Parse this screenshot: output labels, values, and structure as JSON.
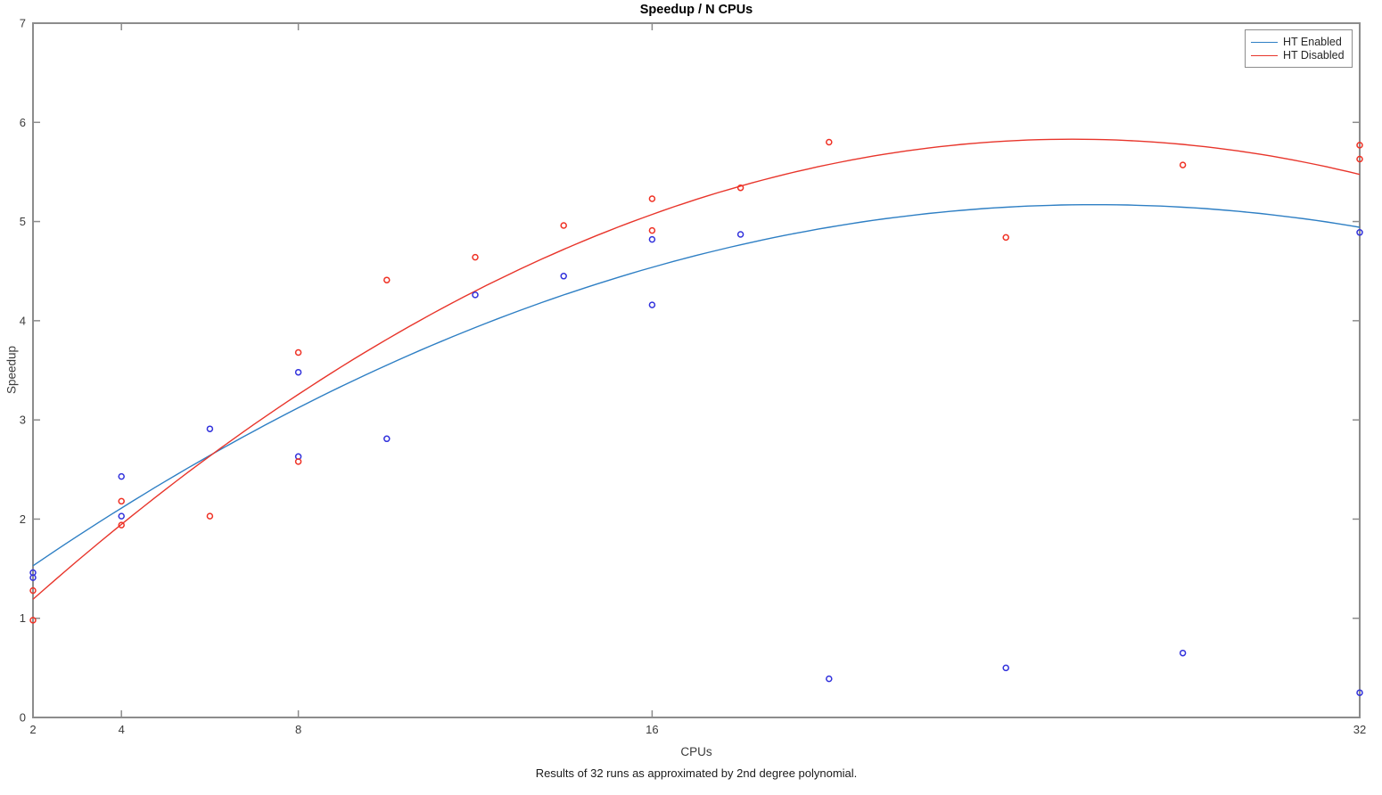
{
  "figure": {
    "title": "Speedup / N CPUs",
    "caption": "Results of 32 runs as approximated by 2nd degree polynomial."
  },
  "chart_data": {
    "type": "scatter",
    "title": "Speedup / N CPUs",
    "xlabel": "CPUs",
    "ylabel": "Speedup",
    "xlim": [
      2,
      32
    ],
    "ylim": [
      0,
      7
    ],
    "x_scale": "linear",
    "x_ticks": [
      2,
      4,
      8,
      16,
      32
    ],
    "y_ticks": [
      0,
      1,
      2,
      3,
      4,
      5,
      6,
      7
    ],
    "grid": false,
    "legend_position": "top-right",
    "axis_color": "#8c8c8c",
    "tick_label_color": "#3b3b3b",
    "series": [
      {
        "name": "HT Enabled",
        "marker_color": "#3232dc",
        "line_color": "#2e7fc4",
        "points": [
          [
            2,
            1.46
          ],
          [
            2,
            1.41
          ],
          [
            4,
            2.43
          ],
          [
            4,
            2.03
          ],
          [
            6,
            2.91
          ],
          [
            8,
            3.48
          ],
          [
            8,
            2.63
          ],
          [
            10,
            2.81
          ],
          [
            12,
            4.26
          ],
          [
            14,
            4.45
          ],
          [
            16,
            4.82
          ],
          [
            16,
            4.16
          ],
          [
            18,
            4.87
          ],
          [
            20,
            0.39
          ],
          [
            24,
            0.5
          ],
          [
            28,
            0.65
          ],
          [
            32,
            4.89
          ],
          [
            32,
            0.25
          ]
        ],
        "fit_2nd_degree_poly": {
          "a": -0.00632,
          "h": 26.0,
          "k": 5.17
        }
      },
      {
        "name": "HT Disabled",
        "marker_color": "#ef3124",
        "line_color": "#e8352b",
        "points": [
          [
            2,
            1.28
          ],
          [
            2,
            0.98
          ],
          [
            4,
            2.18
          ],
          [
            4,
            1.94
          ],
          [
            6,
            2.03
          ],
          [
            8,
            3.68
          ],
          [
            8,
            2.58
          ],
          [
            10,
            4.41
          ],
          [
            12,
            4.64
          ],
          [
            14,
            4.96
          ],
          [
            16,
            5.23
          ],
          [
            16,
            4.91
          ],
          [
            18,
            5.34
          ],
          [
            20,
            5.8
          ],
          [
            24,
            4.84
          ],
          [
            28,
            5.57
          ],
          [
            32,
            5.77
          ],
          [
            32,
            5.63
          ]
        ],
        "fit_2nd_degree_poly": {
          "a": -0.0084,
          "h": 25.5,
          "k": 5.83
        }
      }
    ]
  }
}
